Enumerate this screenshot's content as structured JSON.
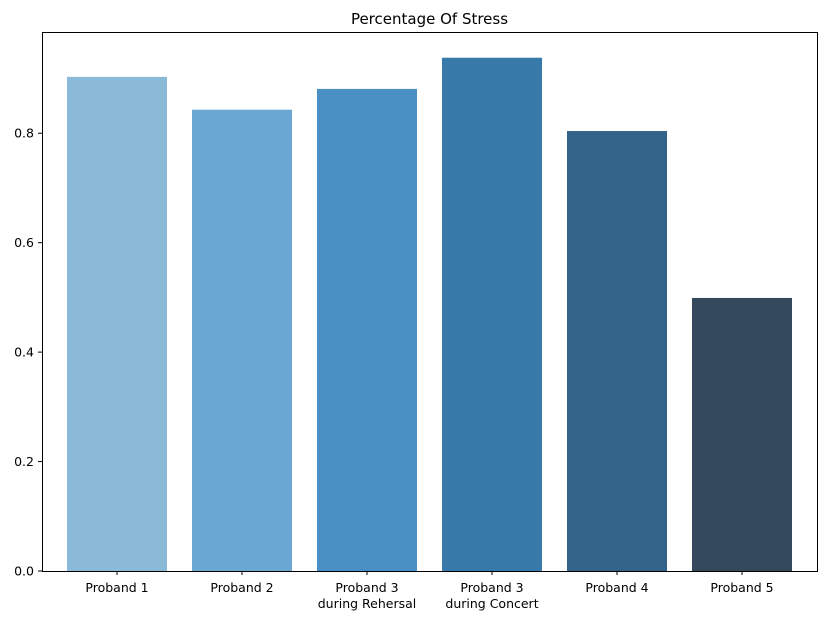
{
  "chart_data": {
    "type": "bar",
    "title": "Percentage Of Stress",
    "xlabel": "",
    "ylabel": "",
    "categories": [
      [
        "Proband 1"
      ],
      [
        "Proband 2"
      ],
      [
        "Proband 3",
        "during Rehersal"
      ],
      [
        "Proband 3",
        "during Concert"
      ],
      [
        "Proband 4"
      ],
      [
        "Proband 5"
      ]
    ],
    "values": [
      0.903,
      0.843,
      0.881,
      0.938,
      0.804,
      0.499
    ],
    "colors": [
      "#8bbad9",
      "#6aa8d3",
      "#4a90c4",
      "#3779a9",
      "#336389",
      "#35495c"
    ],
    "ylim": [
      0,
      0.985
    ],
    "yticks": [
      0.0,
      0.2,
      0.4,
      0.6,
      0.8
    ],
    "ytick_labels": [
      "0.0",
      "0.2",
      "0.4",
      "0.6",
      "0.8"
    ],
    "grid": false,
    "legend": "none"
  }
}
